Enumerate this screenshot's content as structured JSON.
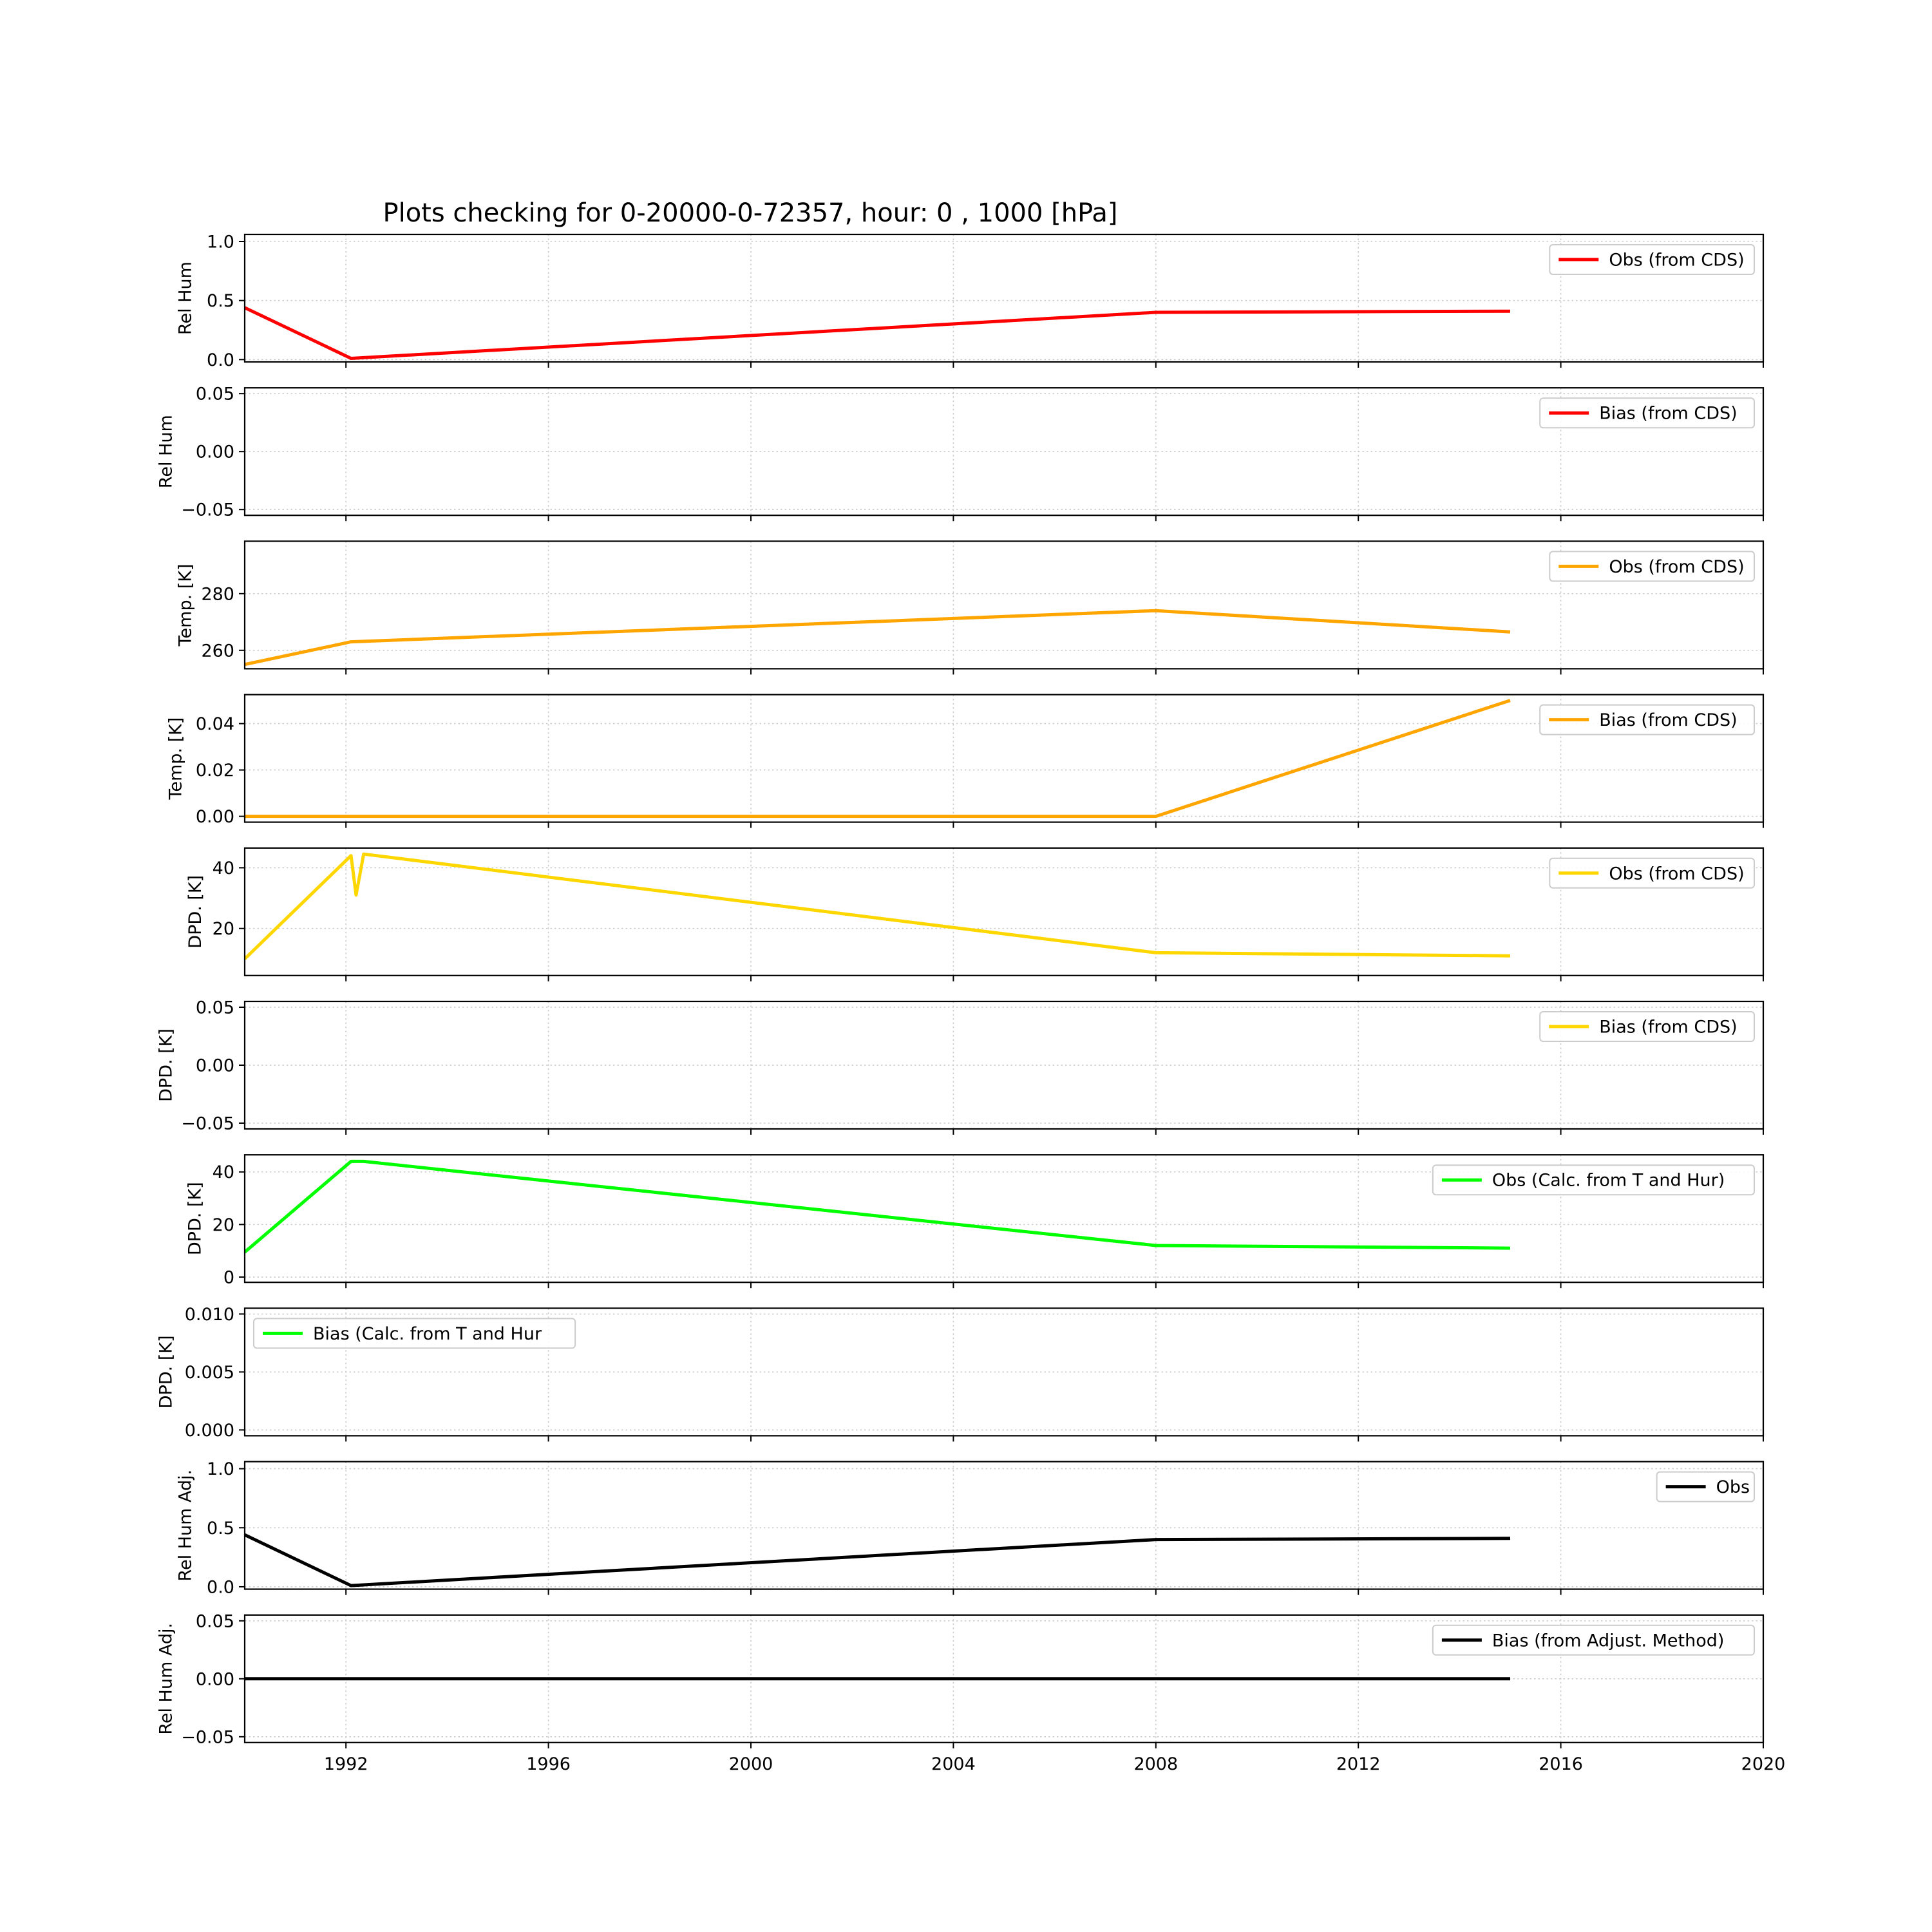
{
  "title": "Plots checking for 0-20000-0-72357, hour: 0 , 1000 [hPa]",
  "x_axis": {
    "range": [
      1990.0,
      2020.0
    ],
    "ticks": [
      1992,
      1996,
      2000,
      2004,
      2008,
      2012,
      2016,
      2020
    ]
  },
  "chart_data": [
    {
      "type": "line",
      "ylabel": "Rel Hum",
      "ylim": [
        -0.02,
        1.06
      ],
      "yticks": [
        0.0,
        0.5,
        1.0
      ],
      "ytick_labels": [
        "0.0",
        "0.5",
        "1.0"
      ],
      "grid": true,
      "legend": "top-right",
      "series": [
        {
          "name": "Obs (from CDS)",
          "color": "#ff0000",
          "x": [
            1990.0,
            1992.1,
            2008.0,
            2015.0
          ],
          "y": [
            0.44,
            0.01,
            0.4,
            0.41
          ]
        }
      ]
    },
    {
      "type": "line",
      "ylabel": "Rel Hum",
      "ylim": [
        -0.055,
        0.055
      ],
      "yticks": [
        -0.05,
        0.0,
        0.05
      ],
      "ytick_labels": [
        "−0.05",
        "0.00",
        "0.05"
      ],
      "grid": true,
      "legend": "top-right",
      "series": [
        {
          "name": "Bias (from CDS)",
          "color": "#ff0000",
          "x": [],
          "y": []
        }
      ]
    },
    {
      "type": "line",
      "ylabel": "Temp. [K]",
      "ylim": [
        253.5,
        298.5
      ],
      "yticks": [
        260,
        280
      ],
      "ytick_labels": [
        "260",
        "280"
      ],
      "grid": true,
      "legend": "top-right",
      "series": [
        {
          "name": "Obs (from CDS)",
          "color": "#ffa500",
          "x": [
            1990.0,
            1992.1,
            2008.0,
            2015.0
          ],
          "y": [
            255.0,
            263.0,
            274.0,
            266.5
          ]
        }
      ]
    },
    {
      "type": "line",
      "ylabel": "Temp. [K]",
      "ylim": [
        -0.0025,
        0.0525
      ],
      "yticks": [
        0.0,
        0.02,
        0.04
      ],
      "ytick_labels": [
        "0.00",
        "0.02",
        "0.04"
      ],
      "grid": true,
      "legend": "top-right",
      "series": [
        {
          "name": "Bias (from CDS)",
          "color": "#ffa500",
          "x": [
            1990.0,
            2008.0,
            2015.0
          ],
          "y": [
            0.0,
            0.0,
            0.05
          ]
        }
      ]
    },
    {
      "type": "line",
      "ylabel": "DPD. [K]",
      "ylim": [
        4.5,
        46.5
      ],
      "yticks": [
        20,
        40
      ],
      "ytick_labels": [
        "20",
        "40"
      ],
      "grid": true,
      "legend": "top-right",
      "series": [
        {
          "name": "Obs (from CDS)",
          "color": "#ffd700",
          "x": [
            1990.0,
            1992.1,
            1992.2,
            1992.35,
            2008.0,
            2015.0
          ],
          "y": [
            10.0,
            44.0,
            31.0,
            44.5,
            12.0,
            11.0
          ]
        }
      ]
    },
    {
      "type": "line",
      "ylabel": "DPD. [K]",
      "ylim": [
        -0.055,
        0.055
      ],
      "yticks": [
        -0.05,
        0.0,
        0.05
      ],
      "ytick_labels": [
        "−0.05",
        "0.00",
        "0.05"
      ],
      "grid": true,
      "legend": "top-right",
      "series": [
        {
          "name": "Bias (from CDS)",
          "color": "#ffd700",
          "x": [],
          "y": []
        }
      ]
    },
    {
      "type": "line",
      "ylabel": "DPD. [K]",
      "ylim": [
        -2.0,
        46.5
      ],
      "yticks": [
        0,
        20,
        40
      ],
      "ytick_labels": [
        "0",
        "20",
        "40"
      ],
      "grid": true,
      "legend": "top-right",
      "series": [
        {
          "name": "Obs (Calc. from T and Hur)",
          "color": "#00ff00",
          "x": [
            1990.0,
            1992.1,
            1992.35,
            2008.0,
            2015.0
          ],
          "y": [
            9.5,
            44.0,
            44.0,
            12.0,
            11.0
          ]
        }
      ]
    },
    {
      "type": "line",
      "ylabel": "DPD. [K]",
      "ylim": [
        -0.0005,
        0.0105
      ],
      "yticks": [
        0.0,
        0.005,
        0.01
      ],
      "ytick_labels": [
        "0.000",
        "0.005",
        "0.010"
      ],
      "grid": true,
      "legend": "top-left",
      "series": [
        {
          "name": "Bias (Calc. from T and Hur",
          "color": "#00ff00",
          "x": [],
          "y": []
        }
      ]
    },
    {
      "type": "line",
      "ylabel": "Rel Hum Adj.",
      "ylim": [
        -0.02,
        1.06
      ],
      "yticks": [
        0.0,
        0.5,
        1.0
      ],
      "ytick_labels": [
        "0.0",
        "0.5",
        "1.0"
      ],
      "grid": true,
      "legend": "top-right",
      "series": [
        {
          "name": "Obs",
          "color": "#000000",
          "x": [
            1990.0,
            1992.1,
            2008.0,
            2015.0
          ],
          "y": [
            0.44,
            0.01,
            0.4,
            0.41
          ]
        }
      ]
    },
    {
      "type": "line",
      "ylabel": "Rel Hum Adj.",
      "ylim": [
        -0.055,
        0.055
      ],
      "yticks": [
        -0.05,
        0.0,
        0.05
      ],
      "ytick_labels": [
        "−0.05",
        "0.00",
        "0.05"
      ],
      "grid": true,
      "legend": "top-right",
      "series": [
        {
          "name": "Bias (from Adjust. Method)",
          "color": "#000000",
          "x": [
            1990.0,
            2015.0
          ],
          "y": [
            0.0,
            0.0
          ]
        }
      ]
    }
  ]
}
